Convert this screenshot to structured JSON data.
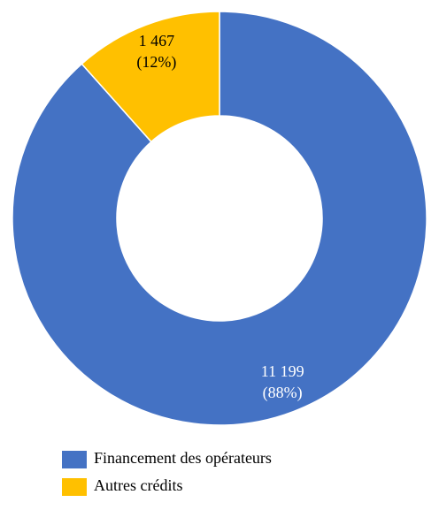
{
  "chart_data": {
    "type": "donut",
    "categories": [
      "Financement des opérateurs",
      "Autres crédits"
    ],
    "values": [
      11199,
      1467
    ],
    "value_labels": [
      "11 199",
      "1 467"
    ],
    "percent_labels": [
      "(88%)",
      "(12%)"
    ],
    "colors": [
      "#4472c4",
      "#ffc000"
    ],
    "label_colors": [
      "#ffffff",
      "#000000"
    ]
  }
}
